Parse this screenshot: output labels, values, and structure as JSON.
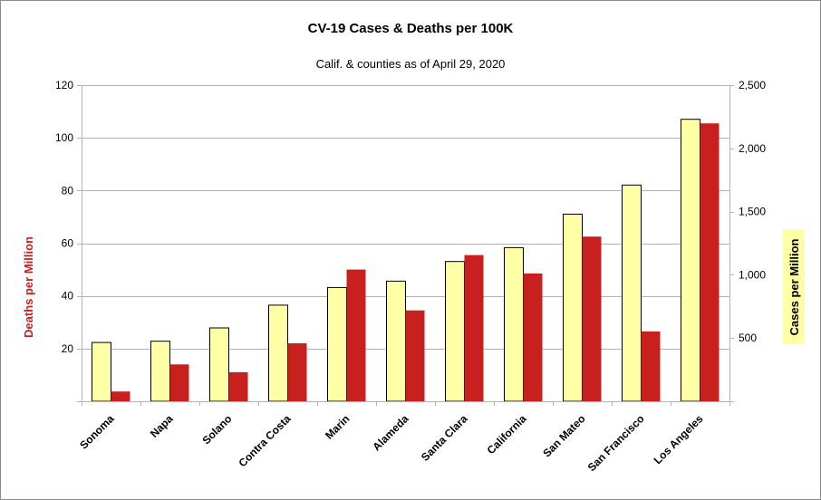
{
  "chart_data": {
    "type": "bar",
    "title": "CV-19 Cases & Deaths per 100K",
    "subtitle": "Calif. & counties as of April 29, 2020",
    "categories": [
      "Sonoma",
      "Napa",
      "Solano",
      "Contra Costa",
      "Marin",
      "Alameda",
      "Santa Clara",
      "California",
      "San Mateo",
      "San Francisco",
      "Los Angeles"
    ],
    "series": [
      {
        "name": "Cases per Million",
        "axis": "right",
        "color": "#ffffa6",
        "values": [
          465,
          475,
          580,
          760,
          900,
          950,
          1105,
          1215,
          1480,
          1710,
          2230
        ]
      },
      {
        "name": "Deaths per Million",
        "axis": "left",
        "color": "#c8201e",
        "values": [
          3.7,
          14,
          11,
          22,
          50,
          34.5,
          55.5,
          48.5,
          62.5,
          26.5,
          105.5
        ]
      }
    ],
    "ylabel_left": "Deaths per Million",
    "ylabel_right": "Cases per Million",
    "ylim_left": [
      0,
      120
    ],
    "ylim_right": [
      0,
      2500
    ],
    "yticks_left": [
      "20",
      "40",
      "60",
      "80",
      "100",
      "120"
    ],
    "yticks_left_values": [
      20,
      40,
      60,
      80,
      100,
      120
    ],
    "yticks_right": [
      "500",
      "1,000",
      "1,500",
      "2,000",
      "2,500"
    ],
    "yticks_right_values": [
      500,
      1000,
      1500,
      2000,
      2500
    ],
    "grid": true,
    "right_label_highlight": "#ffffa6"
  }
}
